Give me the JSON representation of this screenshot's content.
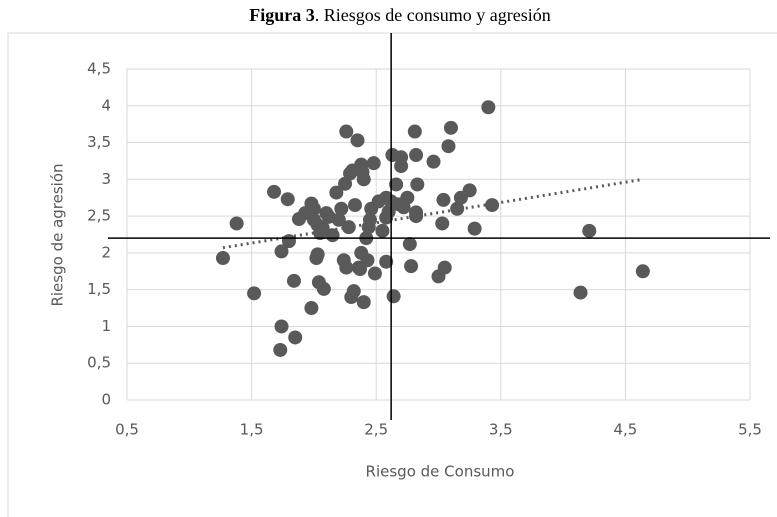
{
  "chart_data": {
    "type": "scatter",
    "title_bold": "Figura 3",
    "title": ". Riesgos de consumo y agresión",
    "xlabel": "Riesgo de Consumo",
    "ylabel": "Riesgo de agresión",
    "color": "#595959",
    "grid": true,
    "xlim": [
      0.5,
      5.5
    ],
    "ylim": [
      0,
      4.5
    ],
    "xticks": [
      {
        "value": 0.5,
        "label": "0,5"
      },
      {
        "value": 1.5,
        "label": "1,5"
      },
      {
        "value": 2.5,
        "label": "2,5"
      },
      {
        "value": 3.5,
        "label": "3,5"
      },
      {
        "value": 4.5,
        "label": "4,5"
      },
      {
        "value": 5.5,
        "label": "5,5"
      }
    ],
    "yticks": [
      0,
      {
        "value": 0.5,
        "label": "0,5"
      },
      1,
      {
        "value": 1.5,
        "label": "1,5"
      },
      2,
      {
        "value": 2.5,
        "label": "2,5"
      },
      3,
      {
        "value": 3.5,
        "label": "3,5"
      },
      4,
      {
        "value": 4.5,
        "label": "4,5"
      }
    ],
    "x": [
      1.27,
      1.38,
      1.52,
      1.68,
      1.79,
      1.8,
      1.74,
      1.73,
      1.74,
      1.85,
      1.84,
      1.88,
      1.93,
      1.98,
      2.0,
      2.0,
      2.03,
      2.05,
      1.98,
      2.03,
      2.04,
      2.08,
      2.02,
      2.07,
      2.1,
      2.12,
      2.15,
      2.18,
      2.2,
      2.22,
      2.26,
      2.24,
      2.28,
      2.25,
      2.26,
      2.29,
      2.31,
      2.33,
      2.35,
      2.38,
      2.39,
      2.4,
      2.32,
      2.3,
      2.37,
      2.36,
      2.38,
      2.4,
      2.43,
      2.42,
      2.44,
      2.45,
      2.48,
      2.46,
      2.49,
      2.52,
      2.55,
      2.58,
      2.58,
      2.6,
      2.62,
      2.63,
      2.64,
      2.66,
      2.7,
      2.7,
      2.72,
      2.75,
      2.77,
      2.78,
      2.81,
      2.82,
      2.83,
      2.82,
      2.82,
      2.58,
      2.68,
      2.96,
      3.0,
      3.03,
      3.04,
      3.05,
      3.08,
      3.1,
      3.15,
      3.18,
      3.25,
      3.29,
      3.4,
      3.43,
      4.14,
      4.21,
      4.64
    ],
    "values": [
      1.93,
      2.4,
      1.45,
      2.83,
      2.73,
      2.16,
      2.02,
      0.68,
      1.0,
      0.85,
      1.62,
      2.46,
      2.54,
      2.67,
      2.6,
      2.45,
      2.38,
      2.27,
      1.25,
      1.98,
      1.6,
      1.51,
      1.93,
      2.34,
      2.54,
      2.49,
      2.24,
      2.82,
      2.45,
      2.6,
      1.8,
      1.9,
      2.35,
      2.94,
      3.65,
      3.08,
      3.12,
      2.65,
      3.53,
      3.2,
      3.1,
      3.0,
      1.48,
      1.4,
      1.78,
      1.8,
      2.0,
      1.33,
      1.9,
      2.2,
      2.35,
      2.45,
      3.22,
      2.6,
      1.72,
      2.7,
      2.3,
      1.88,
      2.48,
      2.56,
      2.7,
      3.33,
      1.41,
      2.93,
      3.3,
      3.18,
      2.62,
      2.75,
      2.12,
      1.82,
      3.65,
      3.33,
      2.93,
      2.55,
      2.5,
      2.75,
      2.66,
      3.24,
      1.68,
      2.4,
      2.72,
      1.8,
      3.45,
      3.7,
      2.6,
      2.75,
      2.85,
      2.33,
      3.98,
      2.65,
      1.46,
      2.3,
      1.75
    ],
    "trendline": {
      "x": [
        1.27,
        4.64
      ],
      "y": [
        2.07,
        3.0
      ]
    },
    "reference_lines": {
      "x": 2.62,
      "y": 2.2
    }
  }
}
